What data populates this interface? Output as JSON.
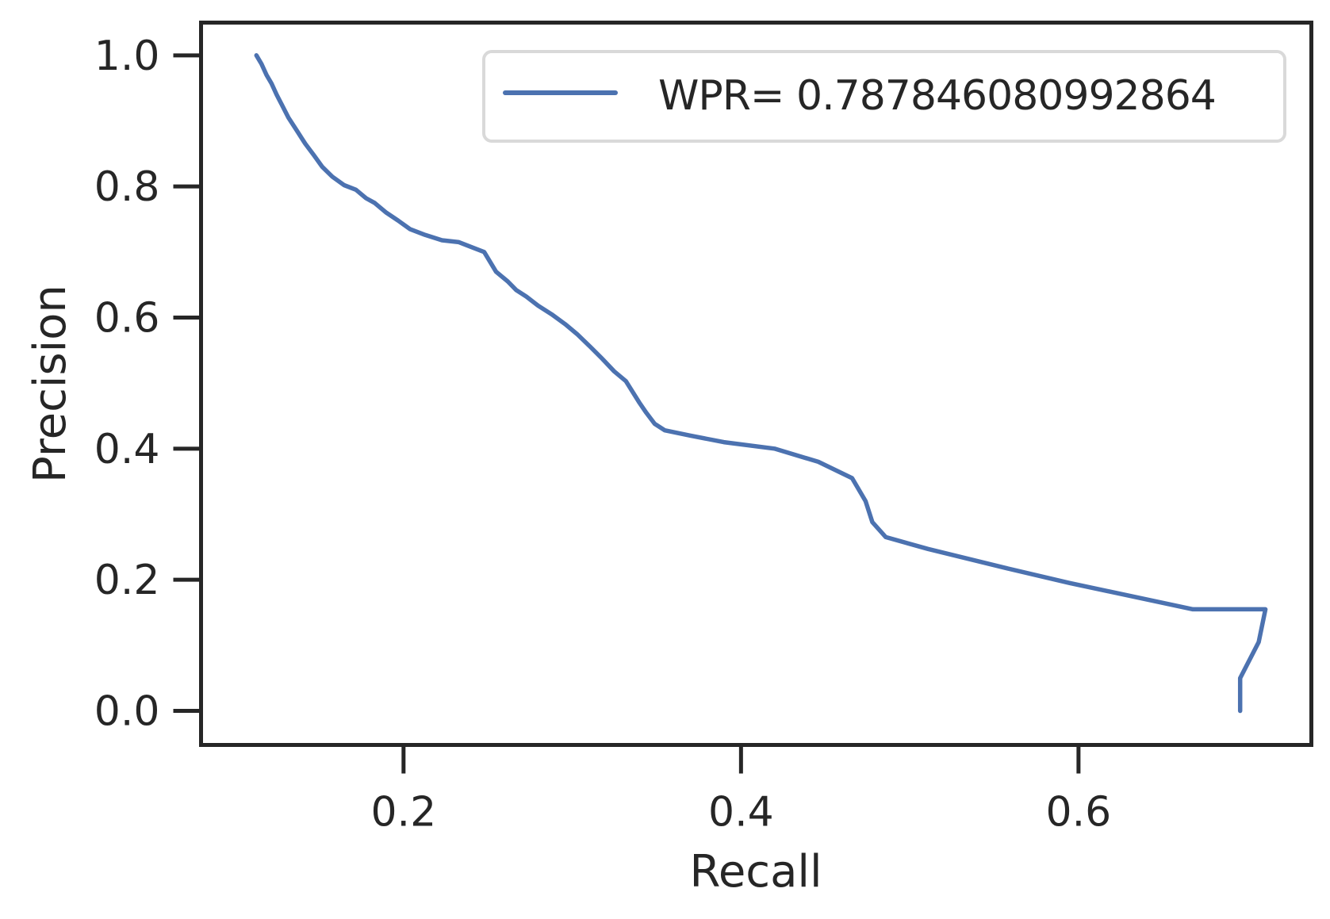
{
  "chart_data": {
    "type": "line",
    "title": "",
    "xlabel": "Recall",
    "ylabel": "Precision",
    "xlim": [
      0.08,
      0.738
    ],
    "ylim": [
      -0.052,
      1.05
    ],
    "grid": false,
    "legend_position": "top-right",
    "x_ticks": [
      {
        "value": 0.2,
        "label": "0.2"
      },
      {
        "value": 0.4,
        "label": "0.4"
      },
      {
        "value": 0.6,
        "label": "0.6"
      }
    ],
    "y_ticks": [
      {
        "value": 0.0,
        "label": "0.0"
      },
      {
        "value": 0.2,
        "label": "0.2"
      },
      {
        "value": 0.4,
        "label": "0.4"
      },
      {
        "value": 0.6,
        "label": "0.6"
      },
      {
        "value": 0.8,
        "label": "0.8"
      },
      {
        "value": 1.0,
        "label": "1.0"
      }
    ],
    "series": [
      {
        "name": "WPR= 0.787846080992864",
        "color": "#4c72b0",
        "x": [
          0.1128,
          0.1158,
          0.1188,
          0.1218,
          0.1248,
          0.1278,
          0.1318,
          0.1368,
          0.1418,
          0.1468,
          0.1518,
          0.1578,
          0.1648,
          0.1718,
          0.1778,
          0.1828,
          0.1898,
          0.1968,
          0.2038,
          0.2128,
          0.2228,
          0.2328,
          0.2408,
          0.2478,
          0.2548,
          0.2618,
          0.2668,
          0.2728,
          0.2798,
          0.2878,
          0.2958,
          0.3028,
          0.3108,
          0.3178,
          0.3248,
          0.3318,
          0.3398,
          0.3438,
          0.3488,
          0.3548,
          0.3698,
          0.3898,
          0.4198,
          0.4458,
          0.4658,
          0.4738,
          0.4778,
          0.4858,
          0.5108,
          0.5568,
          0.5948,
          0.6678,
          0.7108,
          0.7068,
          0.6958,
          0.6958
        ],
        "y": [
          1.0,
          0.987,
          0.97,
          0.957,
          0.94,
          0.925,
          0.905,
          0.885,
          0.865,
          0.848,
          0.83,
          0.815,
          0.802,
          0.795,
          0.782,
          0.775,
          0.76,
          0.748,
          0.735,
          0.726,
          0.718,
          0.715,
          0.707,
          0.7,
          0.67,
          0.655,
          0.642,
          0.632,
          0.618,
          0.605,
          0.59,
          0.575,
          0.555,
          0.537,
          0.518,
          0.503,
          0.47,
          0.455,
          0.438,
          0.428,
          0.42,
          0.41,
          0.4,
          0.38,
          0.355,
          0.32,
          0.288,
          0.265,
          0.247,
          0.218,
          0.195,
          0.155,
          0.155,
          0.105,
          0.05,
          0.0
        ]
      }
    ]
  }
}
